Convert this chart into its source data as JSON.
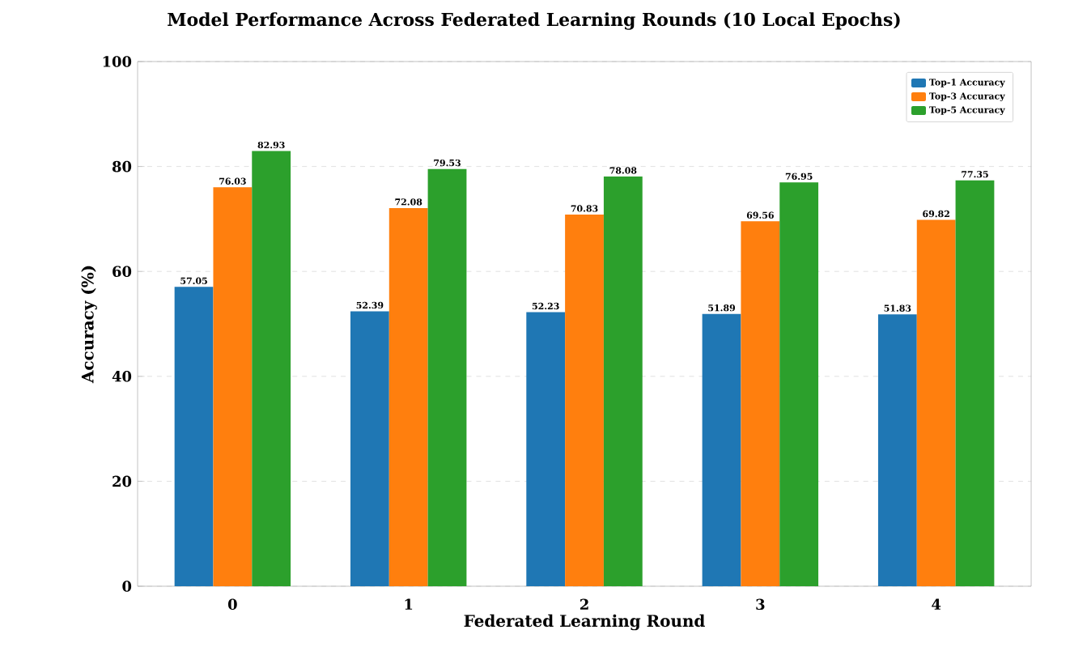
{
  "chart_data": {
    "type": "bar",
    "title": "Model Performance Across Federated Learning Rounds (10 Local Epochs)",
    "xlabel": "Federated Learning Round",
    "ylabel": "Accuracy (%)",
    "categories": [
      "0",
      "1",
      "2",
      "3",
      "4"
    ],
    "series": [
      {
        "name": "Top-1 Accuracy",
        "color": "#1f77b4",
        "values": [
          57.05,
          52.39,
          52.23,
          51.89,
          51.83
        ]
      },
      {
        "name": "Top-3 Accuracy",
        "color": "#ff7f0e",
        "values": [
          76.03,
          72.08,
          70.83,
          69.56,
          69.82
        ]
      },
      {
        "name": "Top-5 Accuracy",
        "color": "#2ca02c",
        "values": [
          82.93,
          79.53,
          78.08,
          76.95,
          77.35
        ]
      }
    ],
    "ylim": [
      0,
      100
    ],
    "yticks": [
      0,
      20,
      40,
      60,
      80,
      100
    ],
    "grid": "y",
    "legend": "top right",
    "data_labels": true
  }
}
